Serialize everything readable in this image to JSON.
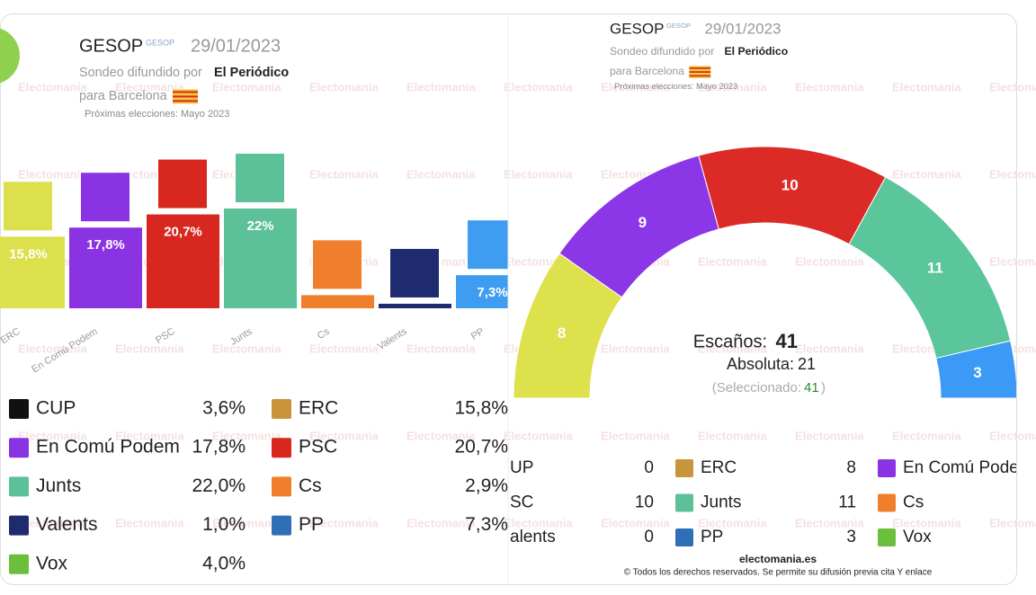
{
  "watermark": "Electomania",
  "chart_data": [
    {
      "type": "bar",
      "title": "GESOP",
      "logo_text": "GESOP",
      "date": "29/01/2023",
      "source_label": "Sondeo difundido por",
      "source": "El Periódico",
      "region": "para Barcelona",
      "note": "Próximas elecciones: Mayo 2023",
      "categories": [
        "ERC",
        "En Comú Podem",
        "PSC",
        "Junts",
        "Cs",
        "Valents",
        "PP"
      ],
      "values": [
        15.8,
        17.8,
        20.7,
        22,
        2.9,
        1.0,
        7.3
      ],
      "value_labels": [
        "15,8%",
        "17,8%",
        "20,7%",
        "22%",
        null,
        null,
        "7,3%"
      ],
      "colors": [
        "#dbe04c",
        "#8a33e3",
        "#d7271f",
        "#5cc199",
        "#ef7f2c",
        "#1e2b6e",
        "#3e9cf1"
      ]
    },
    {
      "type": "hemicycle",
      "title": "GESOP",
      "logo_text": "GESOP",
      "date": "29/01/2023",
      "source_label": "Sondeo difundido por",
      "source": "El Periódico",
      "region": "para Barcelona",
      "note": "Próximas elecciones: Mayo 2023",
      "categories": [
        "ERC",
        "En Comú Podem",
        "PSC",
        "Junts",
        "PP"
      ],
      "values": [
        8,
        9,
        10,
        11,
        3
      ],
      "colors": [
        "#dde14c",
        "#8b37e8",
        "#dc2b26",
        "#5bc59b",
        "#3a9af6"
      ],
      "seats_label": "Escaños:",
      "seats_total": 41,
      "majority_label": "Absoluta:",
      "majority": 21,
      "selected_label": "(Seleccionado:",
      "selected": 41,
      "selected_close": ")"
    }
  ],
  "left_table": {
    "rows": [
      [
        {
          "name": "CUP",
          "value": "3,6%",
          "color": "#111111"
        },
        {
          "name": "ERC",
          "value": "15,8%",
          "color": "#c9953a"
        }
      ],
      [
        {
          "name": "En Comú Podem",
          "value": "17,8%",
          "color": "#8a33e3"
        },
        {
          "name": "PSC",
          "value": "20,7%",
          "color": "#d7271f"
        }
      ],
      [
        {
          "name": "Junts",
          "value": "22,0%",
          "color": "#5cc199"
        },
        {
          "name": "Cs",
          "value": "2,9%",
          "color": "#ef7f2c"
        }
      ],
      [
        {
          "name": "Valents",
          "value": "1,0%",
          "color": "#1e2b6e"
        },
        {
          "name": "PP",
          "value": "7,3%",
          "color": "#2f6fb8"
        }
      ],
      [
        {
          "name": "Vox",
          "value": "4,0%",
          "color": "#6cbf3c"
        }
      ]
    ]
  },
  "right_table": {
    "rows": [
      [
        {
          "name": "UP",
          "value": "0"
        },
        {
          "name": "ERC",
          "value": "8",
          "color": "#c9953a"
        },
        {
          "name": "En Comú Pode",
          "color": "#8a33e3"
        }
      ],
      [
        {
          "name": "SC",
          "value": "10"
        },
        {
          "name": "Junts",
          "value": "11",
          "color": "#5cc199"
        },
        {
          "name": "Cs",
          "color": "#ef7f2c"
        }
      ],
      [
        {
          "name": "alents",
          "value": "0"
        },
        {
          "name": "PP",
          "value": "3",
          "color": "#2f6fb8"
        },
        {
          "name": "Vox",
          "color": "#6cbf3c"
        }
      ]
    ]
  },
  "footer": {
    "site": "electomania.es",
    "copyright": "© Todos los derechos reservados. Se permite su difusión previa cita Y enlace"
  }
}
